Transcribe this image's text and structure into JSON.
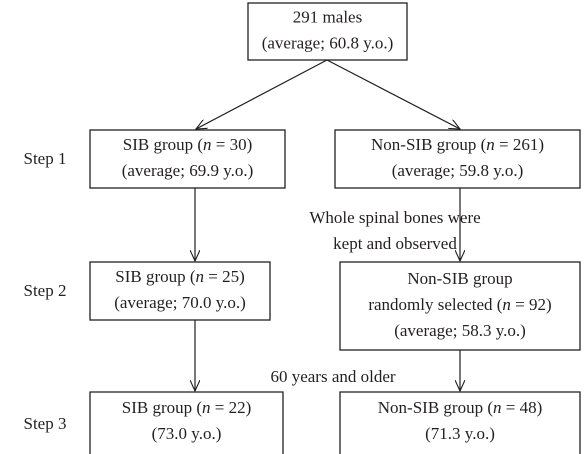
{
  "steps": [
    "Step 1",
    "Step 2",
    "Step 3"
  ],
  "nodes": [
    {
      "lines": [
        "291 males",
        "(average; 60.8 y.o.)"
      ]
    },
    {
      "lines": [
        "SIB group (n = 30)",
        "(average; 69.9 y.o.)"
      ]
    },
    {
      "lines": [
        "Non-SIB group (n = 261)",
        "(average; 59.8 y.o.)"
      ]
    },
    {
      "lines": [
        "SIB group (n = 25)",
        "(average; 70.0 y.o.)"
      ]
    },
    {
      "lines": [
        "Non-SIB group",
        "randomly selected (n = 92)",
        "(average; 58.3 y.o.)"
      ]
    },
    {
      "lines": [
        "SIB group (n = 22)",
        "(73.0 y.o.)"
      ]
    },
    {
      "lines": [
        "Non-SIB group (n = 48)",
        "(71.3 y.o.)"
      ]
    }
  ],
  "notes": [
    {
      "lines": [
        "Whole spinal bones were",
        "kept and observed"
      ]
    },
    {
      "lines": [
        "60 years and older"
      ]
    }
  ]
}
